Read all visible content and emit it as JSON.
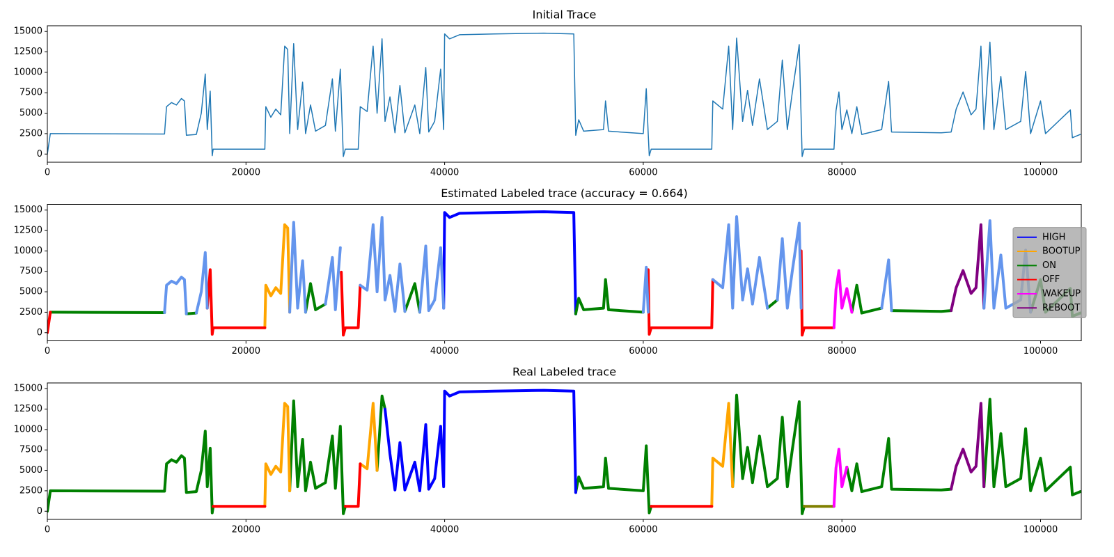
{
  "chart_data": [
    {
      "type": "line",
      "title": "Initial Trace",
      "xlim": [
        0,
        104100
      ],
      "ylim": [
        -1000,
        15700
      ],
      "xticks": [
        0,
        20000,
        40000,
        60000,
        80000,
        100000
      ],
      "yticks": [
        0,
        2500,
        5000,
        7500,
        10000,
        12500,
        15000
      ],
      "linewidth": 1.5,
      "series": [
        {
          "color": "#1f77b4",
          "x": [
            0,
            300,
            11800,
            12000,
            12500,
            13000,
            13500,
            13800,
            14000,
            15000,
            15500,
            15900,
            16100,
            16400,
            16600,
            16700,
            21900,
            22000,
            22500,
            23000,
            23500,
            23900,
            24200,
            24400,
            24800,
            25200,
            25700,
            26000,
            26500,
            27000,
            28000,
            28700,
            29000,
            29500,
            29800,
            30000,
            31300,
            31500,
            32200,
            32800,
            33200,
            33700,
            34000,
            34500,
            35000,
            35500,
            36000,
            37000,
            37500,
            38100,
            38400,
            39000,
            39600,
            39900,
            40000,
            40500,
            41500,
            45000,
            50000,
            53000,
            53200,
            53500,
            54000,
            56000,
            56200,
            56500,
            60000,
            60300,
            60500,
            60600,
            60800,
            66900,
            67000,
            68000,
            68600,
            69000,
            69400,
            70000,
            70500,
            71000,
            71700,
            72500,
            73500,
            74000,
            74500,
            75000,
            75700,
            76000,
            76200,
            79200,
            79400,
            79700,
            80000,
            80500,
            81000,
            81500,
            82000,
            84000,
            84700,
            85000,
            90000,
            91000,
            91500,
            92200,
            93000,
            93500,
            94000,
            94300,
            94900,
            95300,
            96000,
            96500,
            98000,
            98500,
            99000,
            100000,
            100500,
            103000,
            103200,
            104000
          ],
          "values": [
            0,
            2500,
            2450,
            5800,
            6300,
            6000,
            6800,
            6500,
            2300,
            2400,
            5000,
            9800,
            3000,
            7700,
            -200,
            600,
            600,
            5800,
            4500,
            5500,
            4800,
            13200,
            12800,
            2500,
            13500,
            3000,
            8800,
            2500,
            6000,
            2800,
            3500,
            9200,
            2800,
            10400,
            -300,
            600,
            600,
            5800,
            5200,
            13200,
            5000,
            14100,
            4000,
            7000,
            2600,
            8400,
            2600,
            6000,
            2500,
            10600,
            2700,
            4000,
            10400,
            3000,
            14700,
            14100,
            14600,
            14700,
            14800,
            14700,
            2300,
            4200,
            2800,
            3000,
            6500,
            2800,
            2500,
            8000,
            2500,
            -200,
            600,
            600,
            6500,
            5500,
            13200,
            3000,
            14200,
            4000,
            7800,
            3500,
            9200,
            3000,
            4000,
            11500,
            3000,
            7500,
            13400,
            -300,
            600,
            600,
            5300,
            7600,
            3000,
            5400,
            2500,
            5800,
            2400,
            3000,
            8900,
            2700,
            2600,
            2700,
            5500,
            7600,
            4800,
            5500,
            13200,
            3000,
            13700,
            3000,
            9500,
            3000,
            4000,
            10100,
            2500,
            6500,
            2500,
            5400,
            2000,
            2400
          ]
        }
      ]
    },
    {
      "type": "line",
      "title": "Estimated Labeled trace (accuracy = 0.664)",
      "xlim": [
        0,
        104100
      ],
      "ylim": [
        -1000,
        15700
      ],
      "xticks": [
        0,
        20000,
        40000,
        60000,
        80000,
        100000
      ],
      "yticks": [
        0,
        2500,
        5000,
        7500,
        10000,
        12500,
        15000
      ],
      "linewidth": 4,
      "legend": "center right",
      "series": [
        {
          "name": "HIGH",
          "color": "#0000ff",
          "x": [
            39900,
            40000,
            40500,
            41500,
            45000,
            50000,
            53000,
            53200
          ],
          "values": [
            3000,
            14700,
            14100,
            14600,
            14700,
            14800,
            14700,
            2300
          ]
        },
        {
          "name": "BOOTUP",
          "color": "#ffa500",
          "x": [
            21900,
            22000,
            22500,
            23000,
            23500,
            23900,
            24200,
            24400
          ],
          "values": [
            600,
            5800,
            4500,
            5500,
            4800,
            13200,
            12800,
            2500
          ]
        },
        {
          "name": "ON",
          "color": "#008000",
          "x": [
            300,
            11800,
            null,
            14000,
            15000,
            null,
            26000,
            26500,
            27000,
            28000,
            null,
            36000,
            37000,
            37500,
            null,
            53200,
            53500,
            54000,
            56000,
            56200,
            56500,
            60000,
            null,
            72500,
            73500,
            null,
            81000,
            81500,
            82000,
            84000,
            null,
            85000,
            90000,
            91000,
            null,
            99000,
            100000,
            100500,
            103000,
            103200,
            104000
          ],
          "values": [
            2500,
            2450,
            null,
            2300,
            2400,
            null,
            2500,
            6000,
            2800,
            3500,
            null,
            2600,
            6000,
            2500,
            null,
            2300,
            4200,
            2800,
            3000,
            6500,
            2800,
            2500,
            null,
            3000,
            4000,
            null,
            2500,
            5800,
            2400,
            3000,
            null,
            2700,
            2600,
            2700,
            null,
            2500,
            6500,
            2500,
            5400,
            2000,
            2400
          ]
        },
        {
          "name": "OFF",
          "color": "#ff0000",
          "x": [
            0,
            300,
            null,
            16100,
            16400,
            16600,
            16700,
            21900,
            null,
            29600,
            29800,
            30000,
            31300,
            31500,
            null,
            60500,
            60600,
            60800,
            66900,
            67000,
            null,
            75900,
            76000,
            76200,
            79200
          ],
          "values": [
            0,
            2500,
            null,
            3000,
            7700,
            -200,
            600,
            600,
            null,
            7400,
            -300,
            600,
            600,
            5800,
            null,
            7700,
            -200,
            600,
            600,
            6500,
            null,
            10000,
            -300,
            600,
            600
          ]
        },
        {
          "name": "WAKEUP",
          "color": "#ff00ff",
          "x": [
            79200,
            79400,
            79700,
            80000,
            80500,
            81000
          ],
          "values": [
            600,
            5300,
            7600,
            3000,
            5400,
            2500
          ]
        },
        {
          "name": "REBOOT",
          "color": "#800080",
          "x": [
            91000,
            91500,
            92200,
            93000,
            93500,
            94000,
            94300
          ],
          "values": [
            2700,
            5500,
            7600,
            4800,
            5500,
            13200,
            3000
          ]
        },
        {
          "color": "#6495ed",
          "x": [
            11800,
            12000,
            12500,
            13000,
            13500,
            13800,
            14000,
            null,
            15000,
            15500,
            15900,
            16100,
            null,
            24400,
            24800,
            25200,
            25700,
            26000,
            null,
            28000,
            28700,
            29000,
            29500,
            null,
            31500,
            32200,
            32800,
            33200,
            33700,
            34000,
            34500,
            35000,
            35500,
            36000,
            null,
            37500,
            38100,
            38400,
            39000,
            39600,
            39900,
            null,
            60000,
            60300,
            60500,
            null,
            67000,
            68000,
            68600,
            69000,
            69400,
            70000,
            70500,
            71000,
            71700,
            72500,
            null,
            73500,
            74000,
            74500,
            75000,
            75700,
            75900,
            null,
            84000,
            84700,
            85000,
            null,
            94300,
            94900,
            95300,
            96000,
            96500,
            98000,
            98500,
            99000
          ],
          "values": [
            2450,
            5800,
            6300,
            6000,
            6800,
            6500,
            2300,
            null,
            2400,
            5000,
            9800,
            3000,
            null,
            2500,
            13500,
            3000,
            8800,
            2500,
            null,
            3500,
            9200,
            2800,
            10400,
            null,
            5800,
            5200,
            13200,
            5000,
            14100,
            4000,
            7000,
            2600,
            8400,
            2600,
            null,
            2500,
            10600,
            2700,
            4000,
            10400,
            3000,
            null,
            2500,
            8000,
            2500,
            null,
            6500,
            5500,
            13200,
            3000,
            14200,
            4000,
            7800,
            3500,
            9200,
            3000,
            null,
            4000,
            11500,
            3000,
            7500,
            13400,
            3000,
            null,
            3000,
            8900,
            2700,
            null,
            3000,
            13700,
            3000,
            9500,
            3000,
            4000,
            10100,
            2500
          ]
        }
      ]
    },
    {
      "type": "line",
      "title": "Real Labeled trace",
      "xlim": [
        0,
        104100
      ],
      "ylim": [
        -1000,
        15700
      ],
      "xticks": [
        0,
        20000,
        40000,
        60000,
        80000,
        100000
      ],
      "yticks": [
        0,
        2500,
        5000,
        7500,
        10000,
        12500,
        15000
      ],
      "linewidth": 4,
      "series": [
        {
          "color": "#008000",
          "x": [
            0,
            300,
            11800,
            12000,
            12500,
            13000,
            13500,
            13800,
            14000,
            15000,
            15500,
            15900,
            16100,
            16400,
            16600,
            16700,
            null,
            24400,
            24800,
            25200,
            25700,
            26000,
            26500,
            27000,
            28000,
            28700,
            29000,
            29500,
            29800,
            30000,
            null,
            33200,
            33700,
            34000,
            null,
            53200,
            53500,
            54000,
            56000,
            56200,
            56500,
            60000,
            60300,
            60500,
            60600,
            60800,
            null,
            69000,
            69400,
            70000,
            70500,
            71000,
            71700,
            72500,
            73500,
            74000,
            74500,
            75000,
            75700,
            76000,
            76200,
            null,
            80500,
            81000,
            81500,
            82000,
            84000,
            84700,
            85000,
            90000,
            91000,
            null,
            94300,
            94900,
            95300,
            96000,
            96500,
            98000,
            98500,
            99000,
            100000,
            100500,
            103000,
            103200,
            104000
          ],
          "values": [
            0,
            2500,
            2450,
            5800,
            6300,
            6000,
            6800,
            6500,
            2300,
            2400,
            5000,
            9800,
            3000,
            7700,
            -200,
            600,
            null,
            2500,
            13500,
            3000,
            8800,
            2500,
            6000,
            2800,
            3500,
            9200,
            2800,
            10400,
            -300,
            600,
            null,
            5000,
            14100,
            12500,
            null,
            2300,
            4200,
            2800,
            3000,
            6500,
            2800,
            2500,
            8000,
            2500,
            -200,
            600,
            null,
            3000,
            14200,
            4000,
            7800,
            3500,
            9200,
            3000,
            4000,
            11500,
            3000,
            7500,
            13400,
            -300,
            600,
            null,
            5400,
            2500,
            5800,
            2400,
            3000,
            8900,
            2700,
            2600,
            2700,
            null,
            3000,
            13700,
            3000,
            9500,
            3000,
            4000,
            10100,
            2500,
            6500,
            2500,
            5400,
            2000,
            2400
          ]
        },
        {
          "color": "#0000ff",
          "x": [
            34000,
            34500,
            35000,
            35500,
            36000,
            37000,
            37500,
            38100,
            38400,
            39000,
            39600,
            39900,
            40000,
            40500,
            41500,
            45000,
            50000,
            53000,
            53200
          ],
          "values": [
            12500,
            7000,
            2600,
            8400,
            2600,
            6000,
            2500,
            10600,
            2700,
            4000,
            10400,
            3000,
            14700,
            14100,
            14600,
            14700,
            14800,
            14700,
            2300
          ]
        },
        {
          "color": "#ffa500",
          "x": [
            21900,
            22000,
            22500,
            23000,
            23500,
            23900,
            24200,
            24400,
            null,
            31500,
            32200,
            32800,
            33200,
            null,
            66900,
            67000,
            68000,
            68600,
            69000
          ],
          "values": [
            600,
            5800,
            4500,
            5500,
            4800,
            13200,
            12800,
            2500,
            null,
            5800,
            5200,
            13200,
            5000,
            null,
            600,
            6500,
            5500,
            13200,
            3000
          ]
        },
        {
          "color": "#ff0000",
          "x": [
            16700,
            21900,
            null,
            30000,
            31300,
            31500,
            null,
            60800,
            66900
          ],
          "values": [
            600,
            600,
            null,
            600,
            600,
            5800,
            null,
            600,
            600
          ]
        },
        {
          "color": "#808000",
          "x": [
            76200,
            79200
          ],
          "values": [
            600,
            600
          ]
        },
        {
          "color": "#ff00ff",
          "x": [
            79200,
            79400,
            79700,
            80000,
            80500
          ],
          "values": [
            600,
            5300,
            7600,
            3000,
            5400
          ]
        },
        {
          "color": "#800080",
          "x": [
            91000,
            91500,
            92200,
            93000,
            93500,
            94000,
            94300
          ],
          "values": [
            2700,
            5500,
            7600,
            4800,
            5500,
            13200,
            3000
          ]
        }
      ]
    }
  ]
}
